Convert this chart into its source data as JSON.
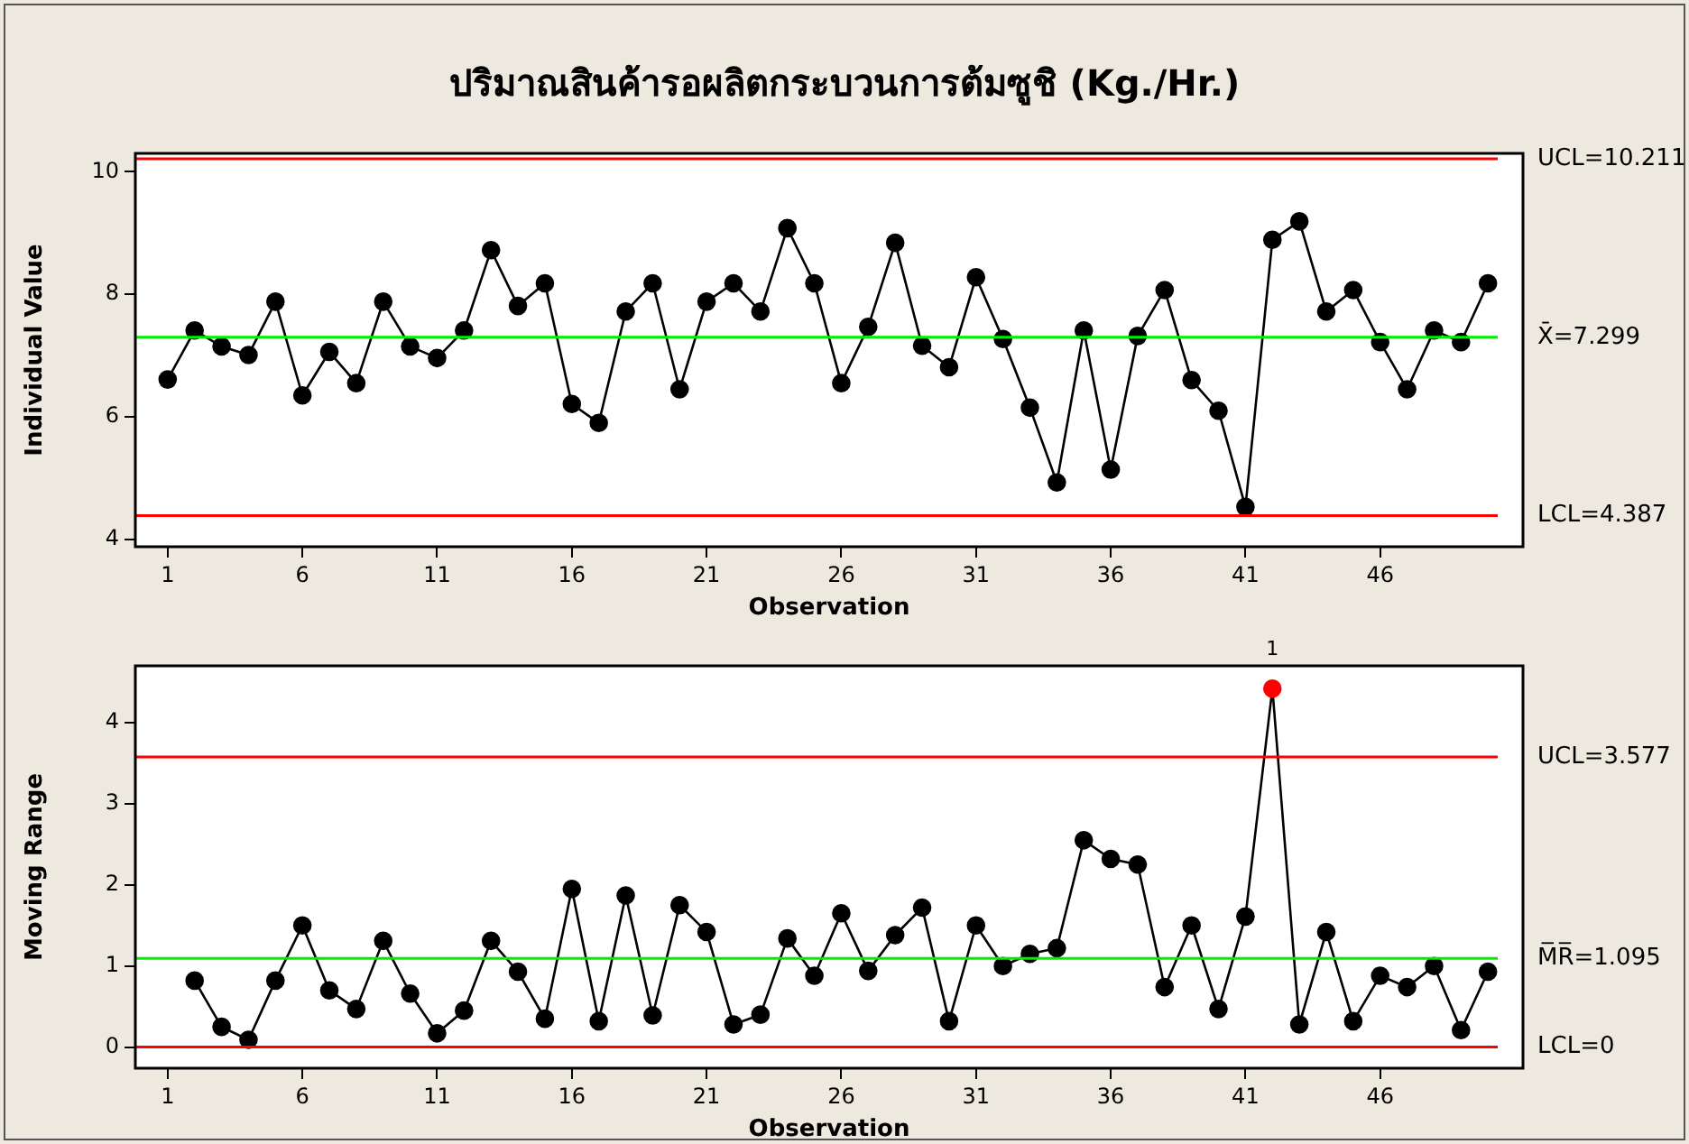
{
  "chart_data": [
    {
      "type": "line",
      "title": "ปริมาณสินค้ารอผลิตกระบวนการต้มซูชิ (Kg./Hr.)",
      "xlabel": "Observation",
      "ylabel": "Individual Value",
      "marker": "circle",
      "line_style": "solid",
      "grid": false,
      "x": [
        1,
        2,
        3,
        4,
        5,
        6,
        7,
        8,
        9,
        10,
        11,
        12,
        13,
        14,
        15,
        16,
        17,
        18,
        19,
        20,
        21,
        22,
        23,
        24,
        25,
        26,
        27,
        28,
        29,
        30,
        31,
        32,
        33,
        34,
        35,
        36,
        37,
        38,
        39,
        40,
        41,
        42,
        43,
        44,
        45,
        46,
        47,
        48,
        49,
        50
      ],
      "series": [
        {
          "color": "#000000",
          "values": [
            6.61,
            7.41,
            7.15,
            7.01,
            7.88,
            6.35,
            7.06,
            6.55,
            7.88,
            7.15,
            6.96,
            7.41,
            8.72,
            7.81,
            8.18,
            6.21,
            5.9,
            7.72,
            8.18,
            6.45,
            7.88,
            8.18,
            7.72,
            9.08,
            8.18,
            6.55,
            7.47,
            8.84,
            7.16,
            6.81,
            8.28,
            7.27,
            6.15,
            4.93,
            7.41,
            5.14,
            7.32,
            8.07,
            6.6,
            6.1,
            4.53,
            8.89,
            9.19,
            7.72,
            8.07,
            7.22,
            6.45,
            7.41,
            7.22,
            8.18
          ]
        }
      ],
      "xlim": [
        -0.2,
        51.3
      ],
      "xticks": [
        1,
        6,
        11,
        16,
        21,
        26,
        31,
        36,
        41,
        46
      ],
      "ylim": [
        3.88,
        10.3
      ],
      "yticks": [
        4,
        6,
        8,
        10
      ],
      "ref_lines": [
        {
          "axis": "y",
          "value": 10.211,
          "label": "UCL=10.211",
          "color": "#ff0000"
        },
        {
          "axis": "y",
          "value": 7.299,
          "label": "X̄=7.299",
          "color": "#00ee00"
        },
        {
          "axis": "y",
          "value": 4.387,
          "label": "LCL=4.387",
          "color": "#ff0000"
        }
      ]
    },
    {
      "type": "line",
      "xlabel": "Observation",
      "ylabel": "Moving Range",
      "marker": "circle",
      "line_style": "solid",
      "grid": false,
      "series": [
        {
          "color": "#000000",
          "x": [
            2,
            3,
            4,
            5,
            6,
            7,
            8,
            9,
            10,
            11,
            12,
            13,
            14,
            15,
            16,
            17,
            18,
            19,
            20,
            21,
            22,
            23,
            24,
            25,
            26,
            27,
            28,
            29,
            30,
            31,
            32,
            33,
            34,
            35,
            36,
            37,
            38,
            39,
            40,
            41,
            42,
            43,
            44,
            45,
            46,
            47,
            48,
            49,
            50
          ],
          "colors": [
            "#000000",
            "#000000",
            "#000000",
            "#000000",
            "#000000",
            "#000000",
            "#000000",
            "#000000",
            "#000000",
            "#000000",
            "#000000",
            "#000000",
            "#000000",
            "#000000",
            "#000000",
            "#000000",
            "#000000",
            "#000000",
            "#000000",
            "#000000",
            "#000000",
            "#000000",
            "#000000",
            "#000000",
            "#000000",
            "#000000",
            "#000000",
            "#000000",
            "#000000",
            "#000000",
            "#000000",
            "#000000",
            "#000000",
            "#000000",
            "#000000",
            "#000000",
            "#000000",
            "#000000",
            "#000000",
            "#000000",
            "#ff0000",
            "#000000",
            "#000000",
            "#000000",
            "#000000",
            "#000000",
            "#000000",
            "#000000",
            "#000000"
          ],
          "values": [
            0.82,
            0.25,
            0.09,
            0.82,
            1.5,
            0.7,
            0.47,
            1.31,
            0.66,
            0.17,
            0.45,
            1.31,
            0.93,
            0.35,
            1.95,
            0.32,
            1.87,
            0.39,
            1.75,
            1.42,
            0.28,
            0.4,
            1.34,
            0.88,
            1.65,
            0.94,
            1.38,
            1.72,
            0.32,
            1.5,
            1.0,
            1.15,
            1.22,
            2.55,
            2.32,
            2.25,
            0.74,
            1.5,
            0.47,
            1.61,
            4.42,
            0.28,
            1.42,
            0.32,
            0.88,
            0.74,
            1.0,
            0.21,
            0.93
          ]
        }
      ],
      "xlim": [
        -0.2,
        51.3
      ],
      "xticks": [
        1,
        6,
        11,
        16,
        21,
        26,
        31,
        36,
        41,
        46
      ],
      "ylim": [
        -0.26,
        4.7
      ],
      "yticks": [
        0,
        1,
        2,
        3,
        4
      ],
      "ref_lines": [
        {
          "axis": "y",
          "value": 3.577,
          "label": "UCL=3.577",
          "color": "#ff0000"
        },
        {
          "axis": "y",
          "value": 1.095,
          "label": "M̅R̅=1.095",
          "color": "#00ee00"
        },
        {
          "axis": "y",
          "value": 0,
          "label": "LCL=0",
          "color": "#ff0000"
        }
      ],
      "annotations": [
        {
          "text": "1",
          "x": 42,
          "y": 4.42
        }
      ]
    }
  ]
}
